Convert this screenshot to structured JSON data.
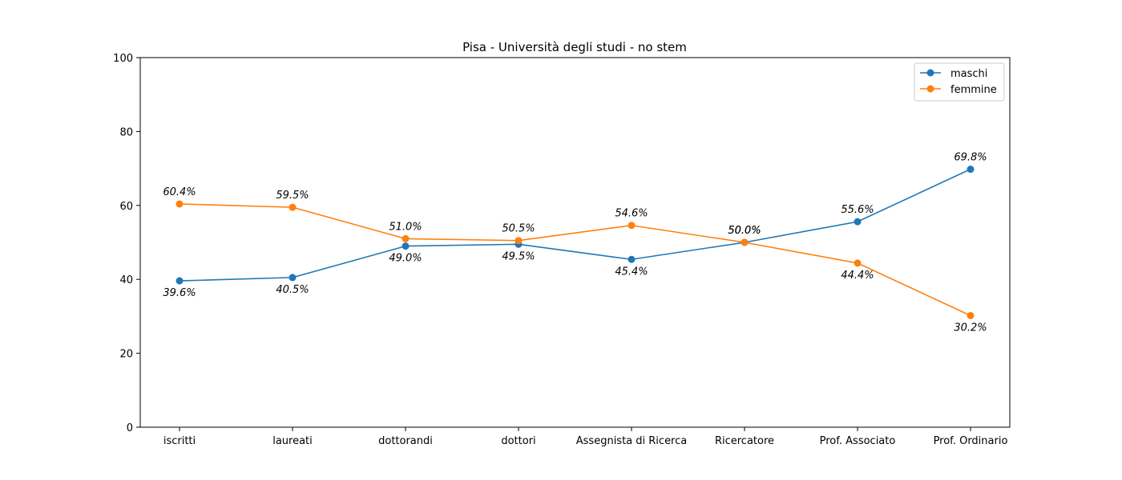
{
  "chart_data": {
    "type": "line",
    "title": "Pisa - Università degli studi - no stem",
    "xlabel": "",
    "ylabel": "",
    "categories": [
      "iscritti",
      "laureati",
      "dottorandi",
      "dottori",
      "Assegnista di Ricerca",
      "Ricercatore",
      "Prof. Associato",
      "Prof. Ordinario"
    ],
    "ylim": [
      0,
      100
    ],
    "yticks": [
      0,
      20,
      40,
      60,
      80,
      100
    ],
    "grid": false,
    "legend_position": "top-right",
    "series": [
      {
        "name": "maschi",
        "color": "#1f77b4",
        "values": [
          39.6,
          40.5,
          49.0,
          49.5,
          45.4,
          50.0,
          55.6,
          69.8
        ],
        "labels": [
          "39.6%",
          "40.5%",
          "49.0%",
          "49.5%",
          "45.4%",
          "50.0%",
          "55.6%",
          "69.8%"
        ]
      },
      {
        "name": "femmine",
        "color": "#ff7f0e",
        "values": [
          60.4,
          59.5,
          51.0,
          50.5,
          54.6,
          50.0,
          44.4,
          30.2
        ],
        "labels": [
          "60.4%",
          "59.5%",
          "51.0%",
          "50.5%",
          "54.6%",
          "50.0%",
          "44.4%",
          "30.2%"
        ]
      }
    ]
  }
}
